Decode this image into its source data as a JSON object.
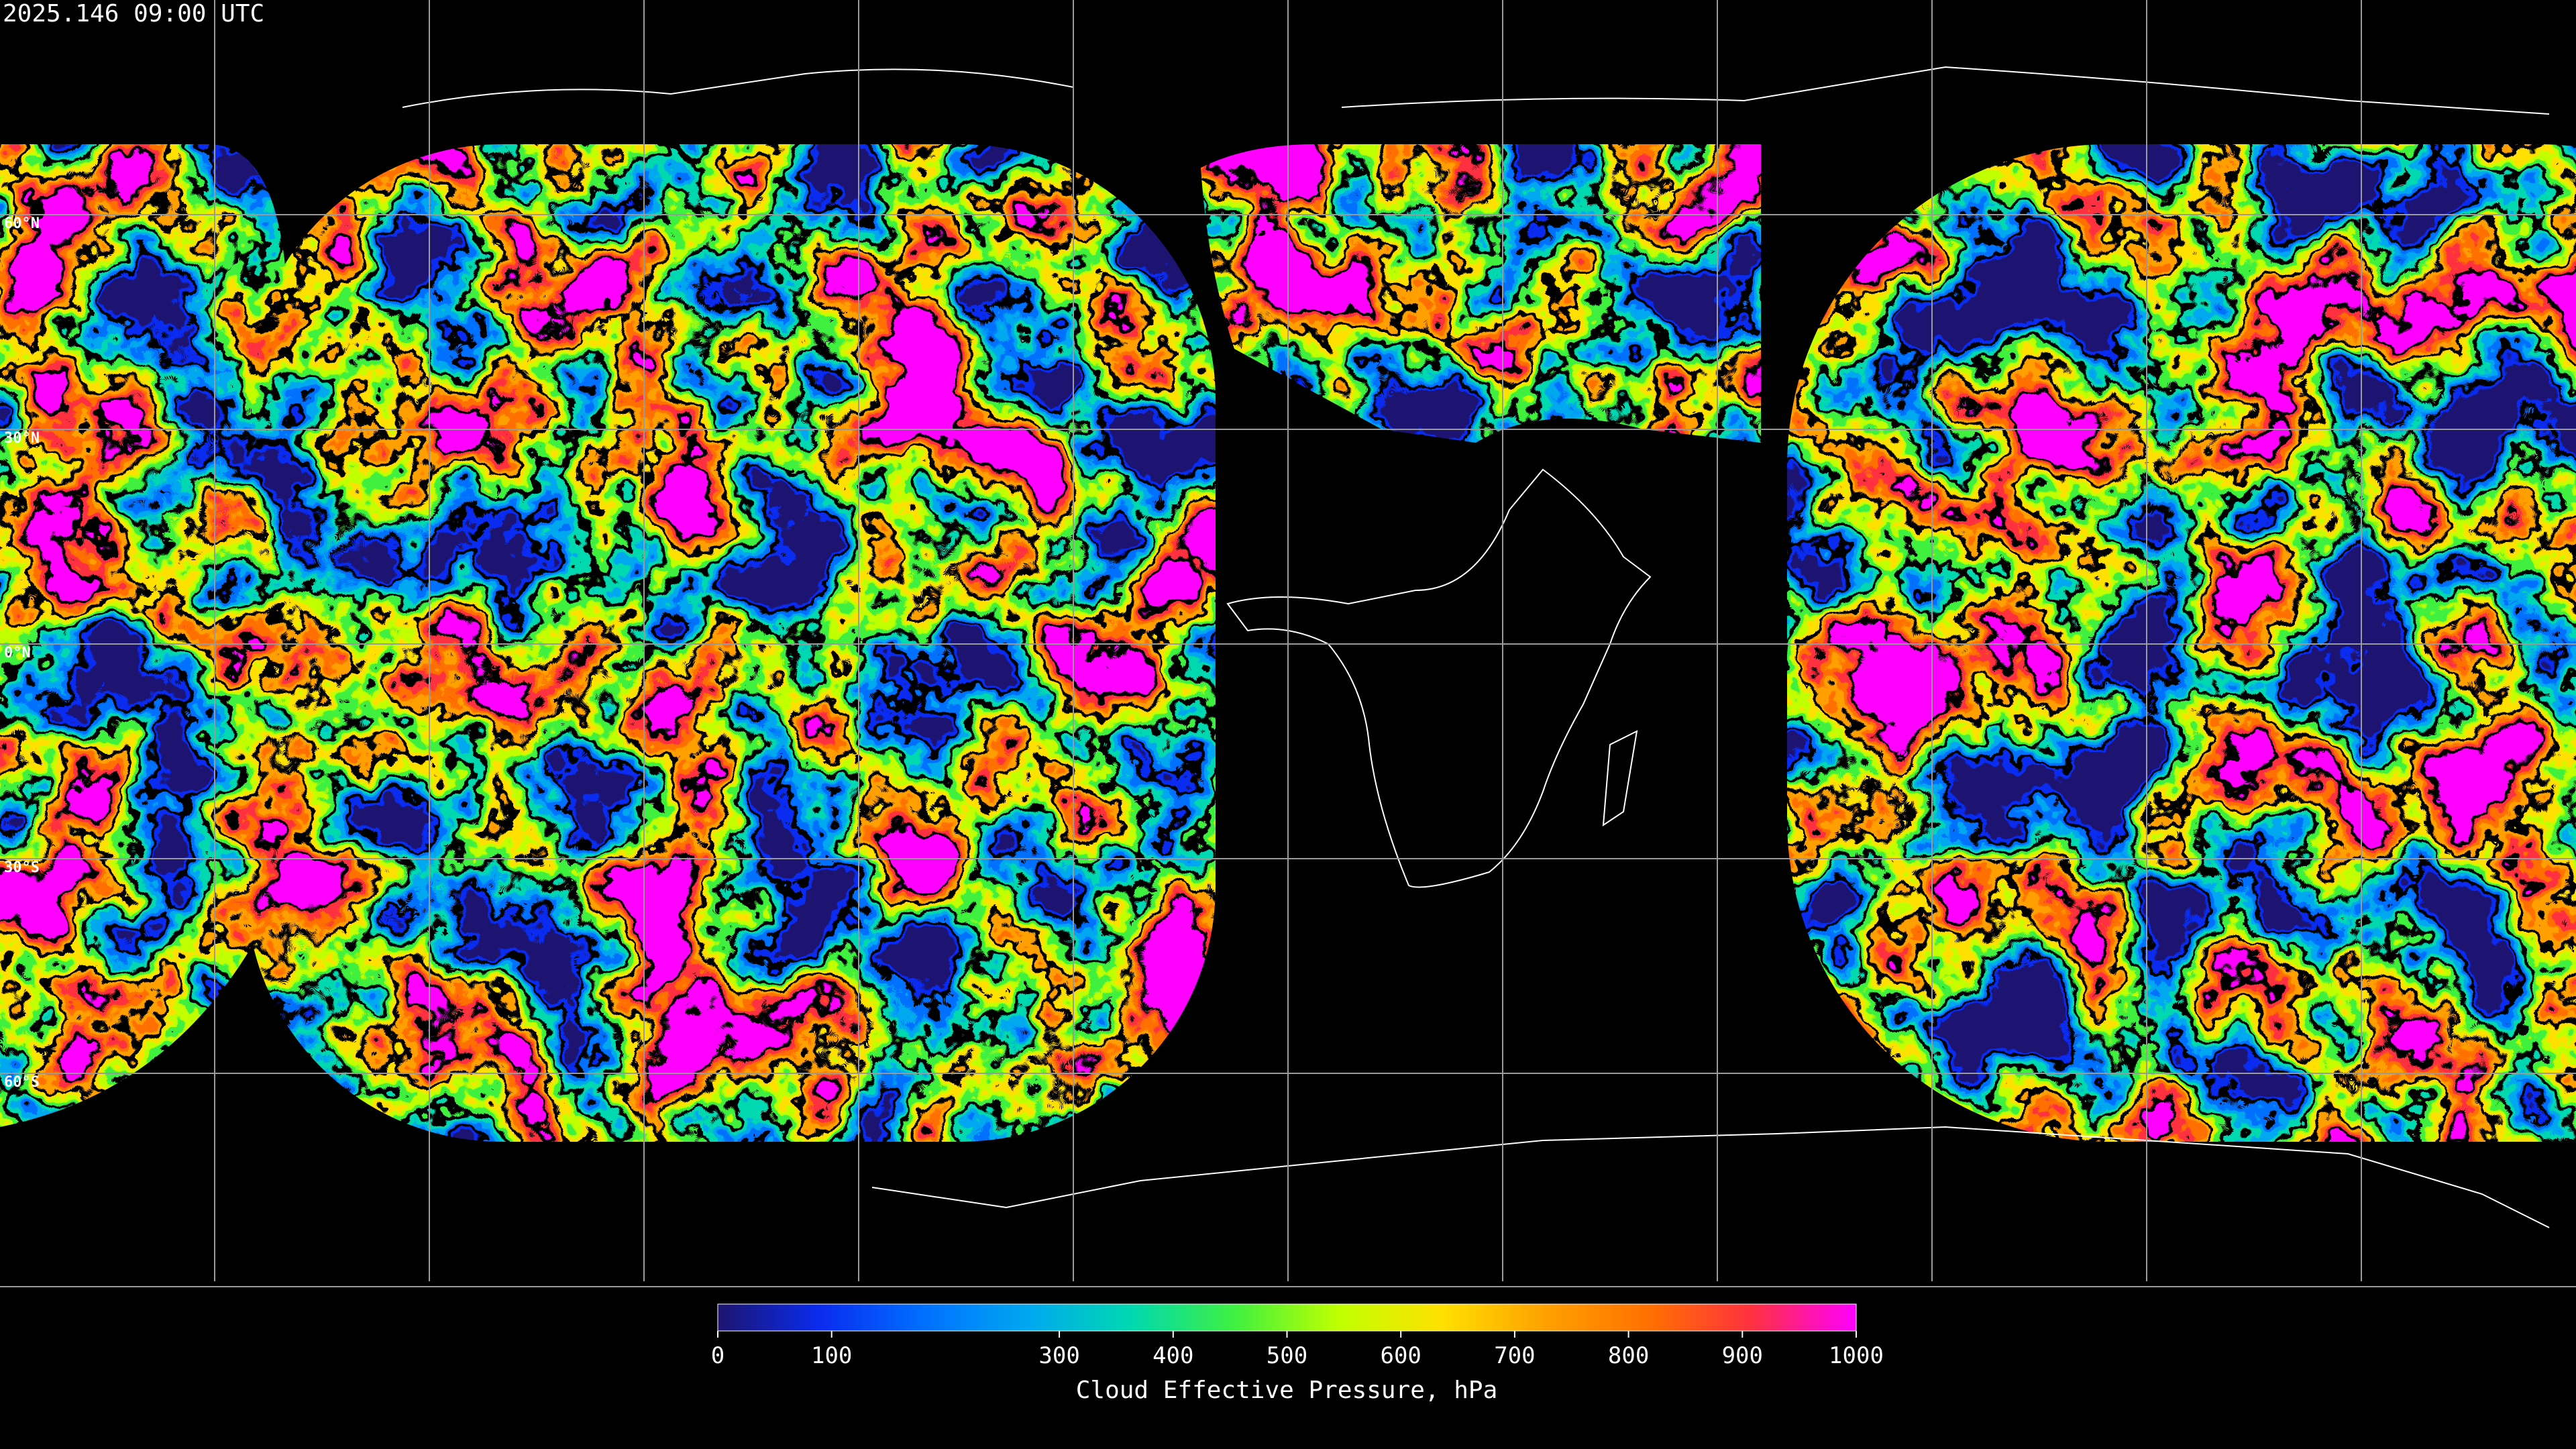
{
  "header": {
    "timestamp": "2025.146 09:00 UTC"
  },
  "map": {
    "lat_labels": [
      "60°N",
      "30°N",
      "0°N",
      "30°S",
      "60°S"
    ]
  },
  "colorbar": {
    "label": "Cloud Effective Pressure, hPa",
    "range": [
      0,
      1000
    ],
    "ticks": [
      0,
      100,
      300,
      400,
      500,
      600,
      700,
      800,
      900,
      1000
    ],
    "colormap": [
      "#1c1470",
      "#0a2cf0",
      "#0070ff",
      "#00a8f0",
      "#00d8b0",
      "#40f040",
      "#c0ff00",
      "#ffe000",
      "#ffa000",
      "#ff7000",
      "#ff3040",
      "#ff00ff"
    ]
  }
}
